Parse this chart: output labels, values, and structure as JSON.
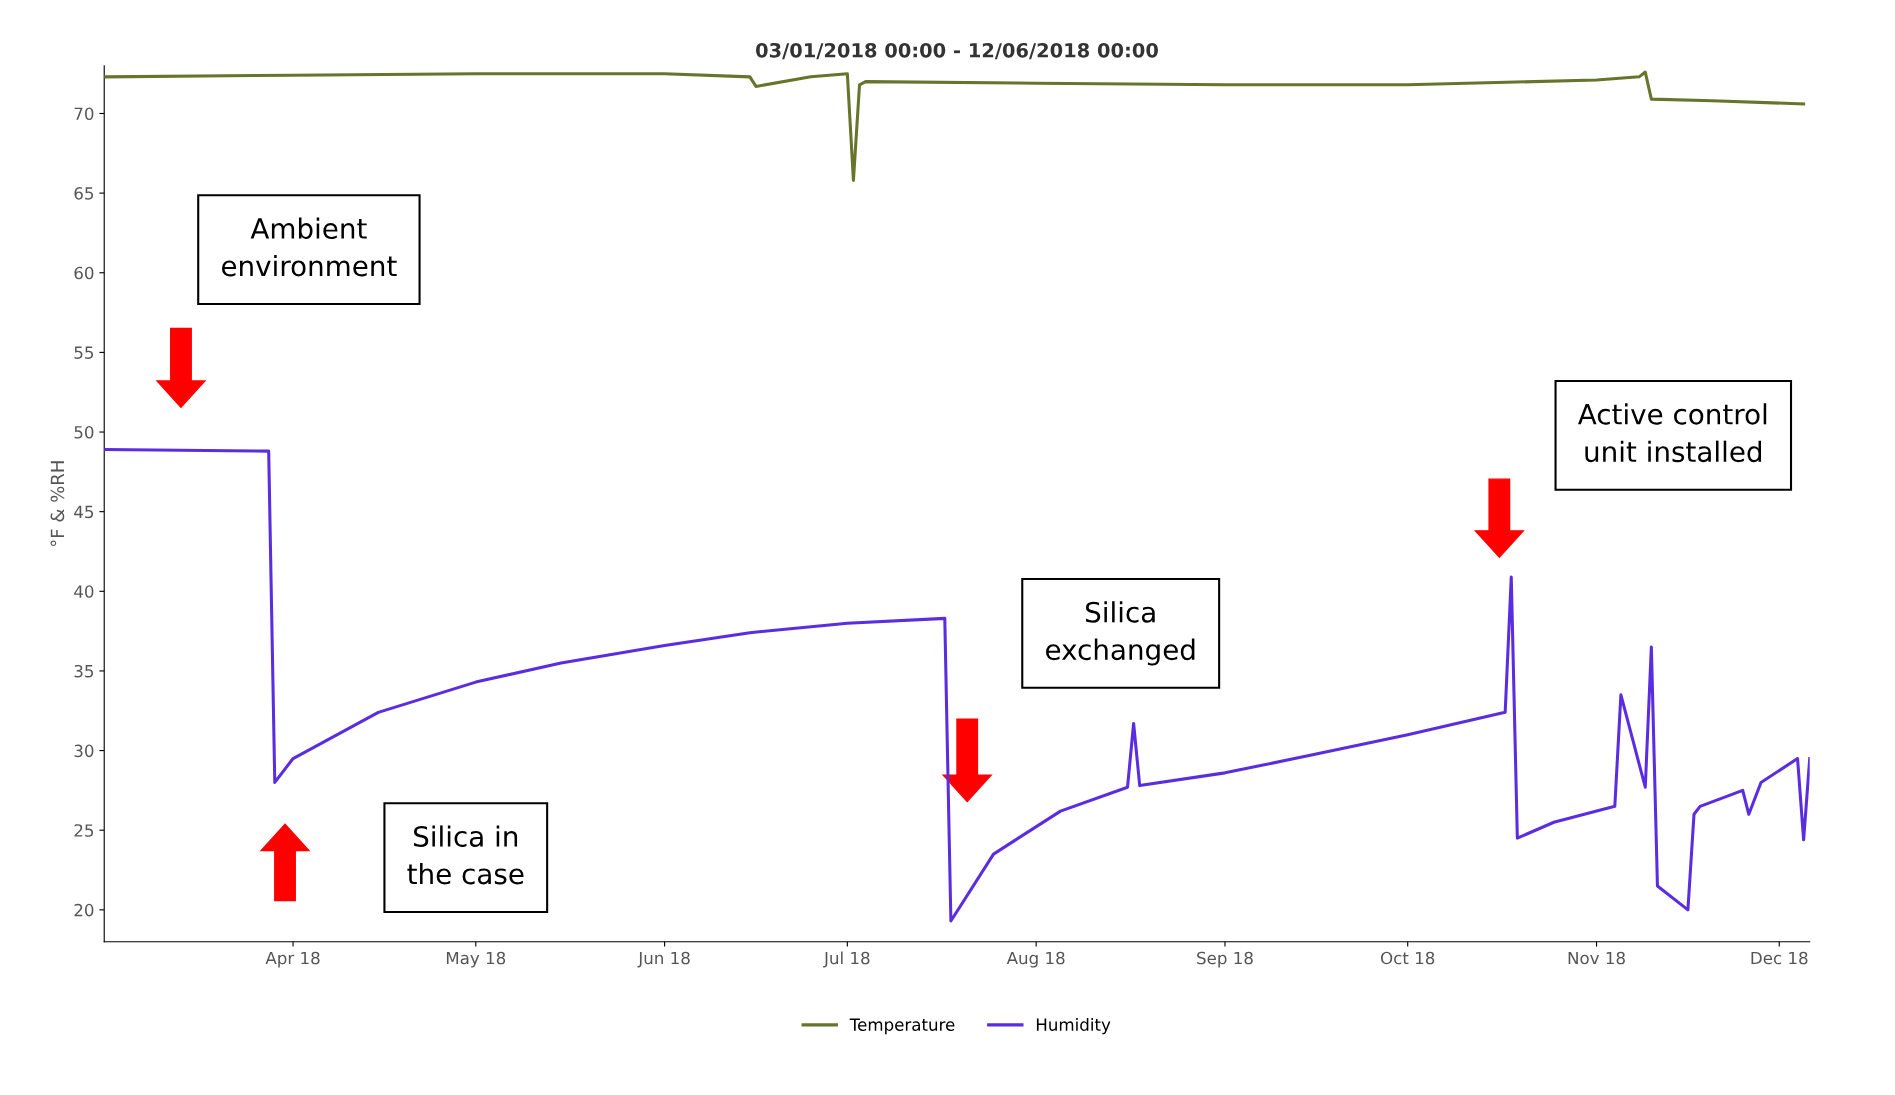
{
  "chart_data": {
    "type": "line",
    "title": "03/01/2018 00:00 - 12/06/2018 00:00",
    "ylabel": "°F & %RH",
    "xlim": [
      "2018-03-01",
      "2018-12-06"
    ],
    "xticks": [
      {
        "value": "2018-04-01",
        "label": "Apr 18"
      },
      {
        "value": "2018-05-01",
        "label": "May 18"
      },
      {
        "value": "2018-06-01",
        "label": "Jun 18"
      },
      {
        "value": "2018-07-01",
        "label": "Jul 18"
      },
      {
        "value": "2018-08-01",
        "label": "Aug 18"
      },
      {
        "value": "2018-09-01",
        "label": "Sep 18"
      },
      {
        "value": "2018-10-01",
        "label": "Oct 18"
      },
      {
        "value": "2018-11-01",
        "label": "Nov 18"
      },
      {
        "value": "2018-12-01",
        "label": "Dec 18"
      }
    ],
    "ylim": [
      18,
      73
    ],
    "yticks": [
      20,
      25,
      30,
      35,
      40,
      45,
      50,
      55,
      60,
      65,
      70
    ],
    "series": [
      {
        "name": "Temperature",
        "color": "#66752c",
        "x": [
          "2018-03-01",
          "2018-04-01",
          "2018-05-01",
          "2018-06-01",
          "2018-06-15",
          "2018-06-16",
          "2018-06-25",
          "2018-07-01",
          "2018-07-02",
          "2018-07-03",
          "2018-07-04",
          "2018-08-01",
          "2018-09-01",
          "2018-10-01",
          "2018-11-01",
          "2018-11-08",
          "2018-11-09",
          "2018-11-10",
          "2018-11-20",
          "2018-12-05"
        ],
        "values": [
          72.3,
          72.4,
          72.5,
          72.5,
          72.3,
          71.7,
          72.3,
          72.5,
          65.8,
          71.8,
          72.0,
          71.9,
          71.8,
          71.8,
          72.1,
          72.3,
          72.6,
          70.9,
          70.8,
          70.6
        ]
      },
      {
        "name": "Humidity",
        "color": "#5a2ee0",
        "x": [
          "2018-03-01",
          "2018-03-28",
          "2018-03-29",
          "2018-04-01",
          "2018-04-15",
          "2018-05-01",
          "2018-05-15",
          "2018-06-01",
          "2018-06-15",
          "2018-07-01",
          "2018-07-17",
          "2018-07-18",
          "2018-07-25",
          "2018-08-05",
          "2018-08-16",
          "2018-08-17",
          "2018-08-18",
          "2018-09-01",
          "2018-09-15",
          "2018-10-01",
          "2018-10-17",
          "2018-10-18",
          "2018-10-19",
          "2018-10-25",
          "2018-11-04",
          "2018-11-05",
          "2018-11-09",
          "2018-11-10",
          "2018-11-11",
          "2018-11-16",
          "2018-11-17",
          "2018-11-18",
          "2018-11-25",
          "2018-11-26",
          "2018-11-28",
          "2018-12-04",
          "2018-12-05",
          "2018-12-06"
        ],
        "values": [
          48.9,
          48.8,
          28.0,
          29.5,
          32.4,
          34.3,
          35.5,
          36.6,
          37.4,
          38.0,
          38.3,
          19.3,
          23.5,
          26.2,
          27.7,
          31.7,
          27.8,
          28.6,
          29.7,
          31.0,
          32.4,
          40.9,
          24.5,
          25.5,
          26.5,
          33.5,
          27.7,
          36.5,
          21.5,
          20.0,
          26.0,
          26.5,
          27.5,
          26.0,
          28.0,
          29.5,
          24.4,
          29.5
        ]
      }
    ],
    "legend": "bottom",
    "grid": false,
    "annotations": [
      "Ambient environment",
      "Silica in the case",
      "Silica exchanged",
      "Active control unit installed"
    ]
  }
}
